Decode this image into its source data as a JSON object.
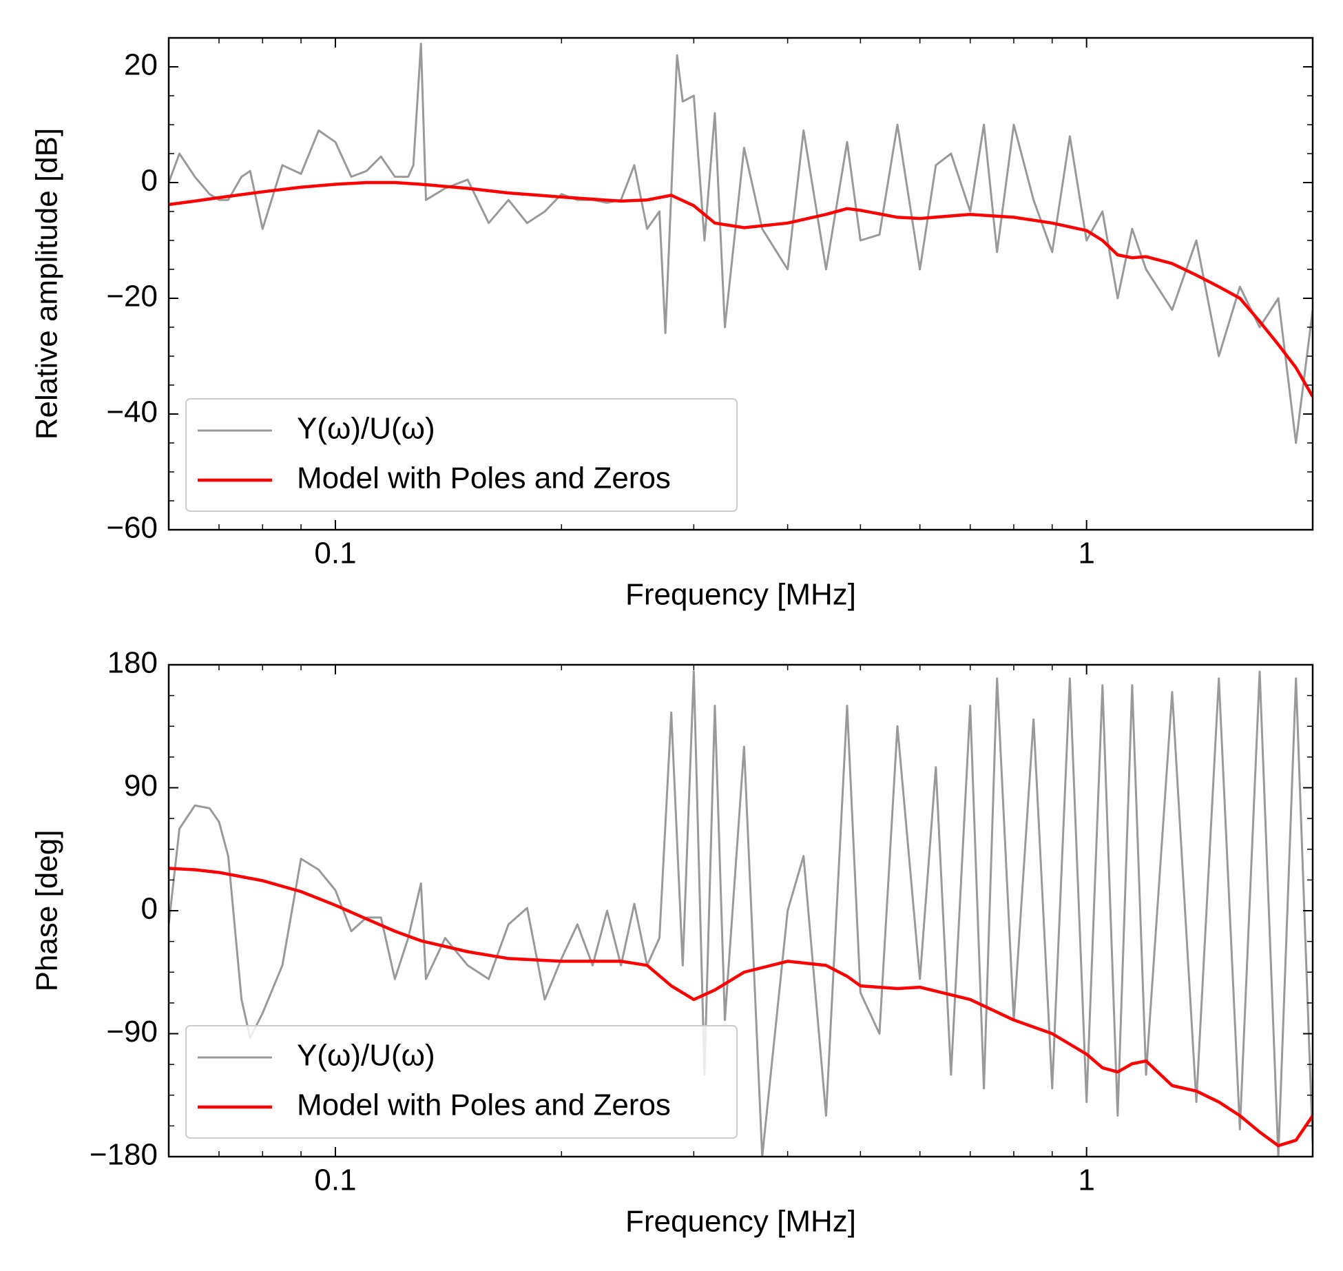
{
  "chart_data": [
    {
      "type": "line",
      "xlabel": "Frequency [MHz]",
      "ylabel": "Relative amplitude [dB]",
      "log_x": true,
      "xlim": [
        0.06,
        2.0
      ],
      "ylim": [
        -60,
        25
      ],
      "xticks": [
        0.1,
        1
      ],
      "yticks": [
        {
          "value": -60,
          "label": "−60"
        },
        {
          "value": -40,
          "label": "−40"
        },
        {
          "value": -20,
          "label": "−20"
        },
        0,
        20
      ],
      "legend": "lower left",
      "series": [
        {
          "name": "Y(ω)/U(ω)",
          "color": "#999999",
          "x": [
            0.06,
            0.062,
            0.065,
            0.068,
            0.07,
            0.072,
            0.075,
            0.077,
            0.08,
            0.085,
            0.09,
            0.095,
            0.1,
            0.105,
            0.11,
            0.115,
            0.12,
            0.125,
            0.127,
            0.13,
            0.132,
            0.14,
            0.15,
            0.16,
            0.17,
            0.18,
            0.19,
            0.2,
            0.21,
            0.22,
            0.23,
            0.24,
            0.25,
            0.26,
            0.27,
            0.275,
            0.285,
            0.29,
            0.3,
            0.31,
            0.32,
            0.33,
            0.35,
            0.37,
            0.4,
            0.42,
            0.45,
            0.48,
            0.5,
            0.53,
            0.56,
            0.6,
            0.63,
            0.66,
            0.7,
            0.73,
            0.76,
            0.8,
            0.85,
            0.9,
            0.95,
            1.0,
            1.05,
            1.1,
            1.15,
            1.2,
            1.3,
            1.4,
            1.5,
            1.6,
            1.7,
            1.8,
            1.9,
            2.0
          ],
          "values": [
            0,
            5,
            1,
            -2,
            -3,
            -3,
            1,
            2,
            -8,
            3,
            1.5,
            9,
            7,
            1,
            2,
            4.5,
            1,
            1,
            3,
            24,
            -3,
            -1,
            0.5,
            -7,
            -3,
            -7,
            -5,
            -2,
            -3,
            -3,
            -3.5,
            -3,
            3,
            -8,
            -5,
            -26,
            22,
            14,
            15,
            -10,
            12,
            -25,
            6,
            -8,
            -15,
            9,
            -15,
            7,
            -10,
            -9,
            10,
            -15,
            3,
            5,
            -5,
            10,
            -12,
            10,
            -3,
            -12,
            8,
            -10,
            -5,
            -20,
            -8,
            -15,
            -22,
            -10,
            -30,
            -18,
            -25,
            -20,
            -45,
            -22
          ]
        },
        {
          "name": "Model with Poles and Zeros",
          "color": "#ff0000",
          "x": [
            0.06,
            0.065,
            0.07,
            0.08,
            0.09,
            0.1,
            0.11,
            0.12,
            0.13,
            0.15,
            0.17,
            0.2,
            0.24,
            0.26,
            0.28,
            0.3,
            0.32,
            0.35,
            0.4,
            0.45,
            0.48,
            0.5,
            0.56,
            0.6,
            0.7,
            0.8,
            0.9,
            1.0,
            1.05,
            1.1,
            1.15,
            1.2,
            1.3,
            1.4,
            1.5,
            1.6,
            1.7,
            1.8,
            1.9,
            2.0
          ],
          "values": [
            -3.8,
            -3.2,
            -2.6,
            -1.6,
            -0.8,
            -0.3,
            0,
            0,
            -0.3,
            -1,
            -1.8,
            -2.5,
            -3.2,
            -3,
            -2.2,
            -4,
            -7,
            -7.8,
            -7,
            -5.5,
            -4.5,
            -4.8,
            -6,
            -6.2,
            -5.5,
            -6,
            -7,
            -8.3,
            -10,
            -12.5,
            -13,
            -12.8,
            -14,
            -16,
            -18,
            -20,
            -24,
            -28,
            -32,
            -37
          ]
        }
      ]
    },
    {
      "type": "line",
      "xlabel": "Frequency [MHz]",
      "ylabel": "Phase [deg]",
      "log_x": true,
      "xlim": [
        0.06,
        2.0
      ],
      "ylim": [
        -180,
        180
      ],
      "xticks": [
        0.1,
        1
      ],
      "yticks": [
        {
          "value": -180,
          "label": "−180"
        },
        {
          "value": -90,
          "label": "−90"
        },
        0,
        90,
        180
      ],
      "legend": "lower left",
      "series": [
        {
          "name": "Y(ω)/U(ω)",
          "color": "#999999",
          "x": [
            0.06,
            0.062,
            0.065,
            0.068,
            0.07,
            0.072,
            0.075,
            0.077,
            0.08,
            0.085,
            0.09,
            0.095,
            0.1,
            0.105,
            0.11,
            0.115,
            0.12,
            0.125,
            0.13,
            0.132,
            0.14,
            0.15,
            0.16,
            0.17,
            0.18,
            0.19,
            0.2,
            0.21,
            0.22,
            0.23,
            0.24,
            0.25,
            0.26,
            0.27,
            0.28,
            0.29,
            0.3,
            0.31,
            0.32,
            0.33,
            0.35,
            0.37,
            0.4,
            0.42,
            0.45,
            0.48,
            0.5,
            0.53,
            0.56,
            0.6,
            0.63,
            0.66,
            0.7,
            0.73,
            0.76,
            0.8,
            0.85,
            0.9,
            0.95,
            1.0,
            1.05,
            1.1,
            1.15,
            1.2,
            1.3,
            1.4,
            1.5,
            1.6,
            1.7,
            1.8,
            1.9,
            2.0
          ],
          "values": [
            -10,
            60,
            77,
            75,
            65,
            40,
            -65,
            -93,
            -75,
            -40,
            38,
            30,
            15,
            -15,
            -5,
            -5,
            -50,
            -20,
            20,
            -50,
            -20,
            -40,
            -50,
            -10,
            2,
            -65,
            -35,
            -10,
            -40,
            0,
            -40,
            5,
            -40,
            -20,
            145,
            -40,
            175,
            -120,
            150,
            -80,
            120,
            -180,
            0,
            40,
            -150,
            150,
            -60,
            -90,
            135,
            -50,
            105,
            -120,
            150,
            -130,
            170,
            -80,
            140,
            -130,
            170,
            -140,
            165,
            -150,
            165,
            -120,
            160,
            -140,
            170,
            -160,
            175,
            -180,
            170,
            -170
          ]
        },
        {
          "name": "Model with Poles and Zeros",
          "color": "#ff0000",
          "x": [
            0.06,
            0.065,
            0.07,
            0.08,
            0.09,
            0.1,
            0.11,
            0.12,
            0.13,
            0.15,
            0.17,
            0.2,
            0.24,
            0.26,
            0.28,
            0.3,
            0.32,
            0.35,
            0.4,
            0.45,
            0.48,
            0.5,
            0.56,
            0.6,
            0.7,
            0.8,
            0.9,
            1.0,
            1.05,
            1.1,
            1.15,
            1.2,
            1.3,
            1.4,
            1.5,
            1.6,
            1.7,
            1.8,
            1.9,
            2.0
          ],
          "values": [
            31,
            30,
            28,
            22,
            14,
            4,
            -6,
            -15,
            -22,
            -30,
            -35,
            -37,
            -37,
            -40,
            -55,
            -65,
            -58,
            -45,
            -37,
            -40,
            -48,
            -55,
            -57,
            -56,
            -65,
            -80,
            -90,
            -105,
            -115,
            -118,
            -112,
            -110,
            -128,
            -132,
            -140,
            -150,
            -162,
            -172,
            -168,
            -150
          ]
        }
      ]
    }
  ]
}
